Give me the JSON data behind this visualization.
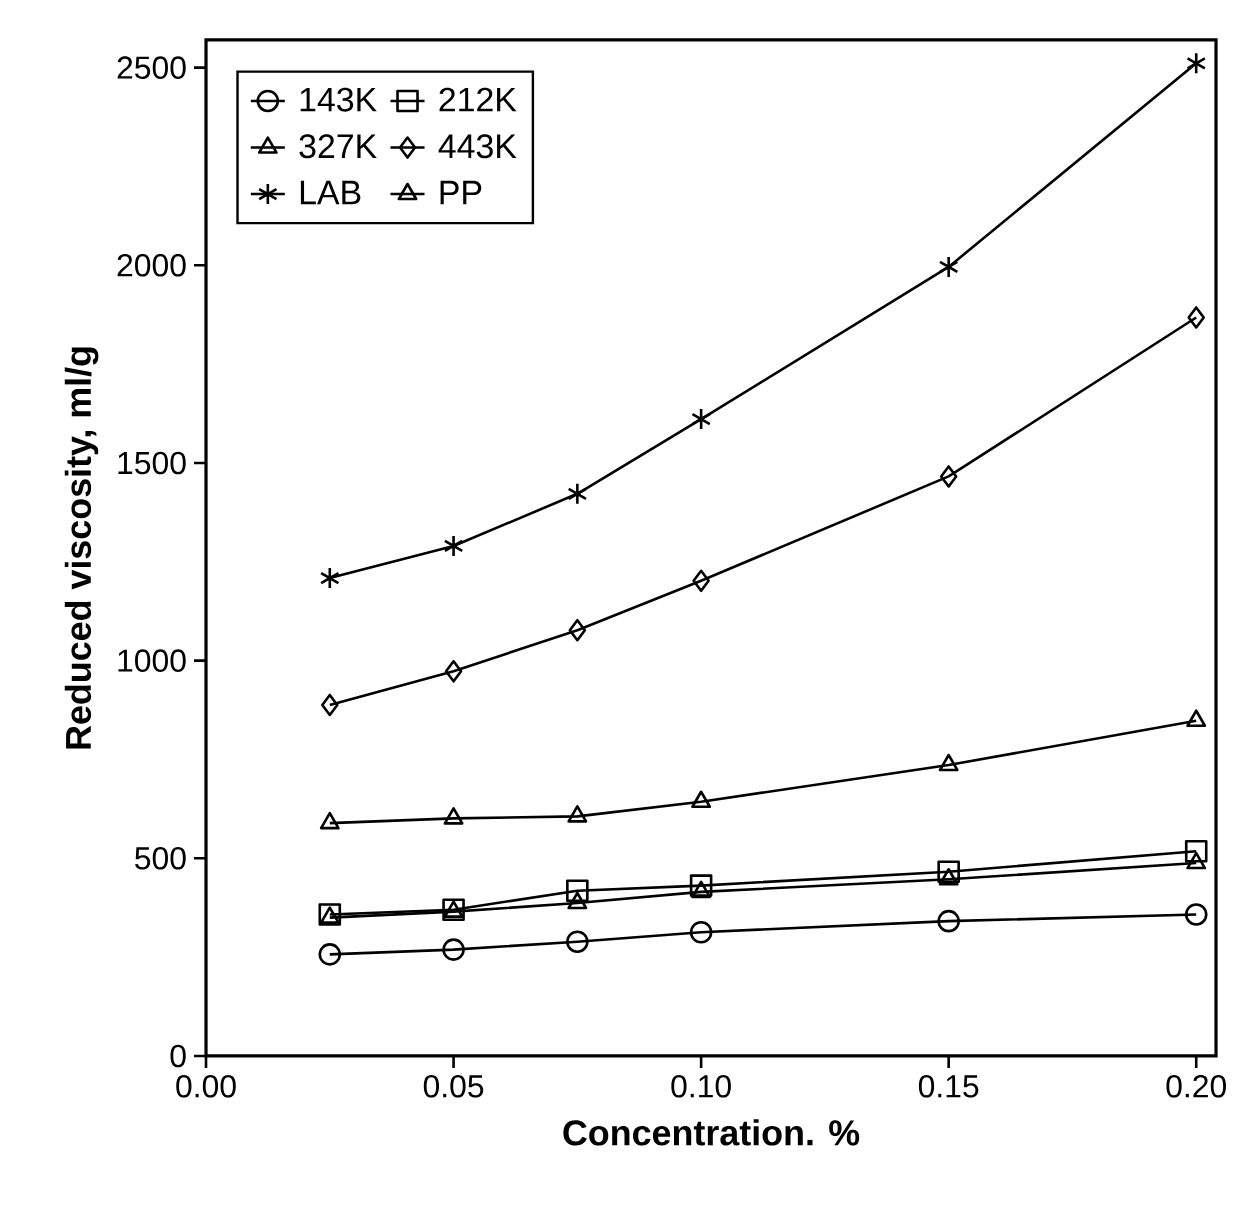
{
  "chart_data": {
    "type": "line",
    "xlabel": "Concentration. %",
    "ylabel": "Reduced viscosity, ml/g",
    "x": [
      0.025,
      0.05,
      0.075,
      0.1,
      0.15,
      0.2
    ],
    "series": [
      {
        "name": "143K",
        "color": "#000000",
        "marker": "circle",
        "values": [
          257,
          269,
          289,
          313,
          341,
          358
        ]
      },
      {
        "name": "212K",
        "color": "#000000",
        "marker": "square",
        "values": [
          358,
          370,
          418,
          431,
          466,
          518
        ]
      },
      {
        "name": "327K",
        "color": "#000000",
        "marker": "triangle",
        "values": [
          589,
          601,
          606,
          643,
          736,
          848
        ]
      },
      {
        "name": "443K",
        "color": "#000000",
        "marker": "diamond",
        "values": [
          888,
          973,
          1077,
          1202,
          1466,
          1868
        ]
      },
      {
        "name": "LAB",
        "color": "#000000",
        "marker": "cross",
        "values": [
          1209,
          1290,
          1422,
          1611,
          1996,
          2511
        ]
      },
      {
        "name": "PP",
        "color": "#000000",
        "marker": "triangle",
        "values": [
          350,
          365,
          387,
          415,
          447,
          488
        ]
      }
    ],
    "xlim": [
      0,
      0.204
    ],
    "ylim": [
      0,
      2570
    ],
    "xticks": [
      {
        "value": 0,
        "label": "0.00"
      },
      {
        "value": 0.05,
        "label": "0.05"
      },
      {
        "value": 0.1,
        "label": "0.10"
      },
      {
        "value": 0.15,
        "label": "0.15"
      },
      {
        "value": 0.2,
        "label": "0.20"
      }
    ],
    "yticks": [
      0,
      500,
      1000,
      1500,
      2000,
      2500
    ],
    "grid": false,
    "legend": "top left",
    "line_style": "solid"
  }
}
